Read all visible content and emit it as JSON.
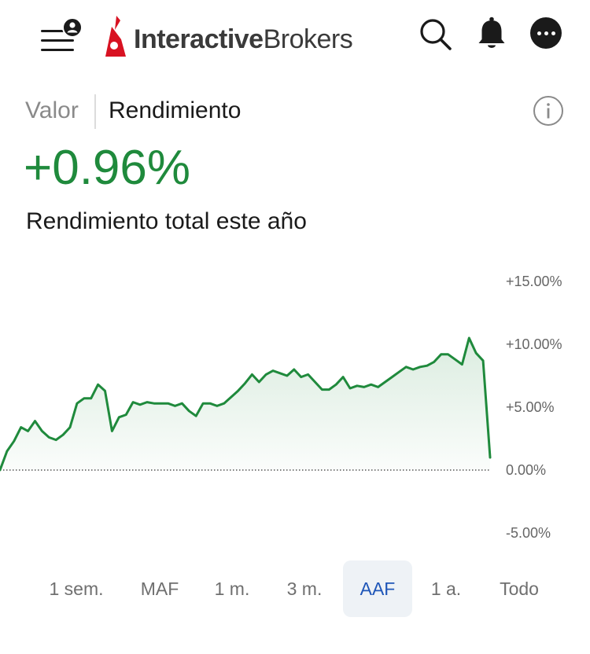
{
  "header": {
    "logo": {
      "part1": "Interactive",
      "part2": "Brokers"
    },
    "icons": [
      "menu-icon",
      "user-icon",
      "search-icon",
      "bell-icon",
      "more-icon"
    ]
  },
  "toggle": {
    "valor": "Valor",
    "rendimiento": "Rendimiento",
    "selected": "rendimiento"
  },
  "summary": {
    "value": "+0.96%",
    "label": "Rendimiento total este año"
  },
  "colors": {
    "positive": "#1f8a3c",
    "active_tab": "#1f56b8",
    "active_tab_bg": "#eef2f6"
  },
  "chart_data": {
    "type": "area",
    "y_unit": "%",
    "y_ticks": [
      "+15.00%",
      "+10.00%",
      "+5.00%",
      "0.00%",
      "-5.00%"
    ],
    "ylim": [
      -5,
      15
    ],
    "baseline": 0,
    "series": [
      {
        "values": [
          0.0,
          1.5,
          2.3,
          3.4,
          3.1,
          3.9,
          3.1,
          2.6,
          2.4,
          2.8,
          3.4,
          5.3,
          5.7,
          5.7,
          6.8,
          6.3,
          3.1,
          4.2,
          4.4,
          5.4,
          5.2,
          5.4,
          5.3,
          5.3,
          5.3,
          5.1,
          5.3,
          4.7,
          4.3,
          5.3,
          5.3,
          5.1,
          5.3,
          5.8,
          6.3,
          6.9,
          7.6,
          7.0,
          7.6,
          7.9,
          7.7,
          7.5,
          8.0,
          7.4,
          7.6,
          7.0,
          6.4,
          6.4,
          6.8,
          7.4,
          6.5,
          6.7,
          6.6,
          6.8,
          6.6,
          7.0,
          7.4,
          7.8,
          8.2,
          8.0,
          8.2,
          8.3,
          8.6,
          9.2,
          9.2,
          8.8,
          8.4,
          10.5,
          9.3,
          8.7,
          1.0
        ]
      }
    ]
  },
  "ranges": [
    {
      "label": "1 sem.",
      "active": false
    },
    {
      "label": "MAF",
      "active": false
    },
    {
      "label": "1 m.",
      "active": false
    },
    {
      "label": "3 m.",
      "active": false
    },
    {
      "label": "AAF",
      "active": true
    },
    {
      "label": "1 a.",
      "active": false
    },
    {
      "label": "Todo",
      "active": false
    }
  ]
}
